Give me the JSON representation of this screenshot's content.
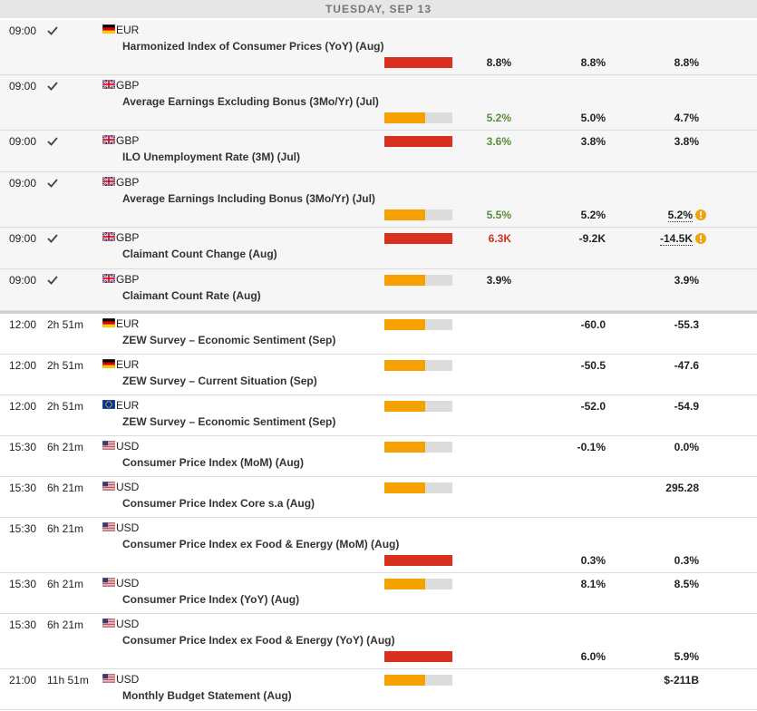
{
  "header": {
    "date": "TUESDAY, SEP 13"
  },
  "rows": [
    {
      "time": "09:00",
      "done": true,
      "flag": "de",
      "currency": "EUR",
      "event": "Harmonized Index of Consumer Prices (YoY) (Aug)",
      "importance": "high",
      "actual": "8.8%",
      "forecast": "8.8%",
      "previous": "8.8%"
    },
    {
      "time": "09:00",
      "done": true,
      "flag": "gb",
      "currency": "GBP",
      "event": "Average Earnings Excluding Bonus (3Mo/Yr) (Jul)",
      "importance": "medium",
      "actual": "5.2%",
      "actual_trend": "better",
      "forecast": "5.0%",
      "previous": "4.7%"
    },
    {
      "time": "09:00",
      "done": true,
      "flag": "gb",
      "currency": "GBP",
      "event": "ILO Unemployment Rate (3M) (Jul)",
      "importance": "high",
      "actual": "3.6%",
      "actual_trend": "better",
      "forecast": "3.8%",
      "previous": "3.8%"
    },
    {
      "time": "09:00",
      "done": true,
      "flag": "gb",
      "currency": "GBP",
      "event": "Average Earnings Including Bonus (3Mo/Yr) (Jul)",
      "importance": "medium",
      "actual": "5.5%",
      "actual_trend": "better",
      "forecast": "5.2%",
      "previous": "5.2%",
      "previous_revised": true
    },
    {
      "time": "09:00",
      "done": true,
      "flag": "gb",
      "currency": "GBP",
      "event": "Claimant Count Change (Aug)",
      "importance": "high",
      "actual": "6.3K",
      "actual_trend": "worse",
      "forecast": "-9.2K",
      "previous": "-14.5K",
      "previous_revised": true
    },
    {
      "time": "09:00",
      "done": true,
      "flag": "gb",
      "currency": "GBP",
      "event": "Claimant Count Rate (Aug)",
      "importance": "medium",
      "actual": "3.9%",
      "previous": "3.9%"
    },
    {
      "time": "12:00",
      "countdown": "2h 51m",
      "flag": "de",
      "currency": "EUR",
      "event": "ZEW Survey – Economic Sentiment (Sep)",
      "importance": "medium",
      "forecast": "-60.0",
      "previous": "-55.3"
    },
    {
      "time": "12:00",
      "countdown": "2h 51m",
      "flag": "de",
      "currency": "EUR",
      "event": "ZEW Survey – Current Situation (Sep)",
      "importance": "medium",
      "forecast": "-50.5",
      "previous": "-47.6"
    },
    {
      "time": "12:00",
      "countdown": "2h 51m",
      "flag": "eu",
      "currency": "EUR",
      "event": "ZEW Survey – Economic Sentiment (Sep)",
      "importance": "medium",
      "forecast": "-52.0",
      "previous": "-54.9"
    },
    {
      "time": "15:30",
      "countdown": "6h 21m",
      "flag": "us",
      "currency": "USD",
      "event": "Consumer Price Index (MoM) (Aug)",
      "importance": "medium",
      "forecast": "-0.1%",
      "previous": "0.0%"
    },
    {
      "time": "15:30",
      "countdown": "6h 21m",
      "flag": "us",
      "currency": "USD",
      "event": "Consumer Price Index Core s.a (Aug)",
      "importance": "medium",
      "previous": "295.28"
    },
    {
      "time": "15:30",
      "countdown": "6h 21m",
      "flag": "us",
      "currency": "USD",
      "event": "Consumer Price Index ex Food & Energy (MoM) (Aug)",
      "importance": "high",
      "forecast": "0.3%",
      "previous": "0.3%"
    },
    {
      "time": "15:30",
      "countdown": "6h 21m",
      "flag": "us",
      "currency": "USD",
      "event": "Consumer Price Index (YoY) (Aug)",
      "importance": "medium",
      "forecast": "8.1%",
      "previous": "8.5%"
    },
    {
      "time": "15:30",
      "countdown": "6h 21m",
      "flag": "us",
      "currency": "USD",
      "event": "Consumer Price Index ex Food & Energy (YoY) (Aug)",
      "importance": "high",
      "forecast": "6.0%",
      "previous": "5.9%"
    },
    {
      "time": "21:00",
      "countdown": "11h 51m",
      "flag": "us",
      "currency": "USD",
      "event": "Monthly Budget Statement (Aug)",
      "importance": "medium",
      "previous": "$-211B"
    }
  ]
}
